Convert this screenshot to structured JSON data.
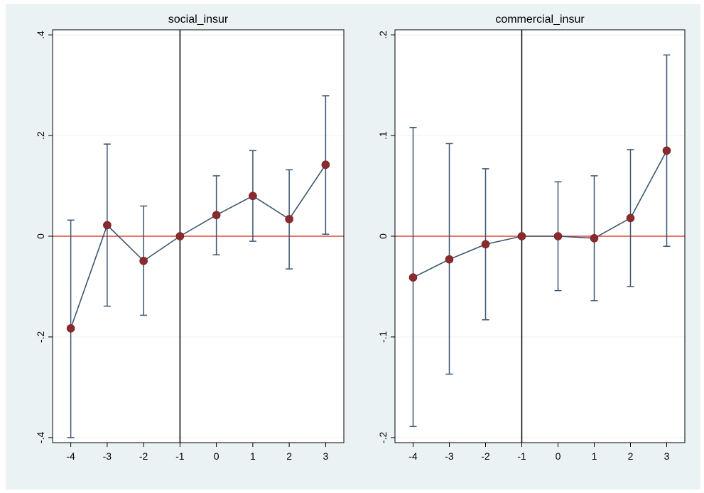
{
  "chart_data": [
    {
      "type": "scatter",
      "title": "social_insur",
      "xlabel": "",
      "ylabel": "",
      "xlim": [
        -4.5,
        3.5
      ],
      "ylim": [
        -0.41,
        0.41
      ],
      "x_ticks": [
        -4,
        -3,
        -2,
        -1,
        0,
        1,
        2,
        3
      ],
      "x_tick_labels": [
        "-4",
        "-3",
        "-2",
        "-1",
        "0",
        "1",
        "2",
        "3"
      ],
      "y_ticks": [
        -0.4,
        -0.2,
        0,
        0.2,
        0.4
      ],
      "y_tick_labels": [
        "-.4",
        "-.2",
        "0",
        ".2",
        ".4"
      ],
      "reference_vline": -1,
      "reference_hline": 0,
      "grid": true,
      "series": [
        {
          "x": [
            -4,
            -3,
            -2,
            -1,
            0,
            1,
            2,
            3
          ],
          "y": [
            -0.183,
            0.022,
            -0.049,
            0.0,
            0.042,
            0.08,
            0.034,
            0.142
          ],
          "ci_low": [
            -0.4,
            -0.139,
            -0.157,
            0.0,
            -0.037,
            -0.01,
            -0.065,
            0.004
          ],
          "ci_high": [
            0.032,
            0.183,
            0.06,
            0.0,
            0.12,
            0.17,
            0.132,
            0.279
          ]
        }
      ]
    },
    {
      "type": "scatter",
      "title": "commercial_insur",
      "xlabel": "",
      "ylabel": "",
      "xlim": [
        -4.5,
        3.5
      ],
      "ylim": [
        -0.205,
        0.205
      ],
      "x_ticks": [
        -4,
        -3,
        -2,
        -1,
        0,
        1,
        2,
        3
      ],
      "x_tick_labels": [
        "-4",
        "-3",
        "-2",
        "-1",
        "0",
        "1",
        "2",
        "3"
      ],
      "y_ticks": [
        -0.2,
        -0.1,
        0,
        0.1,
        0.2
      ],
      "y_tick_labels": [
        "-.2",
        "-.1",
        "0",
        ".1",
        ".2"
      ],
      "reference_vline": -1,
      "reference_hline": 0,
      "grid": true,
      "series": [
        {
          "x": [
            -4,
            -3,
            -2,
            -1,
            0,
            1,
            2,
            3
          ],
          "y": [
            -0.041,
            -0.023,
            -0.008,
            0.0,
            0.0,
            -0.002,
            0.018,
            0.085
          ],
          "ci_low": [
            -0.189,
            -0.137,
            -0.083,
            0.0,
            -0.054,
            -0.064,
            -0.05,
            -0.01
          ],
          "ci_high": [
            0.108,
            0.092,
            0.067,
            0.0,
            0.054,
            0.06,
            0.086,
            0.18
          ]
        }
      ]
    }
  ],
  "colors": {
    "outer_background": "#eaf2f3",
    "plot_background": "#ffffff",
    "series_line": "#3b5670",
    "marker": "#8b2a2c",
    "reference_hline": "#e04a3a",
    "reference_vline": "#000000",
    "grid": "#eef3f4",
    "axis": "#000000"
  }
}
